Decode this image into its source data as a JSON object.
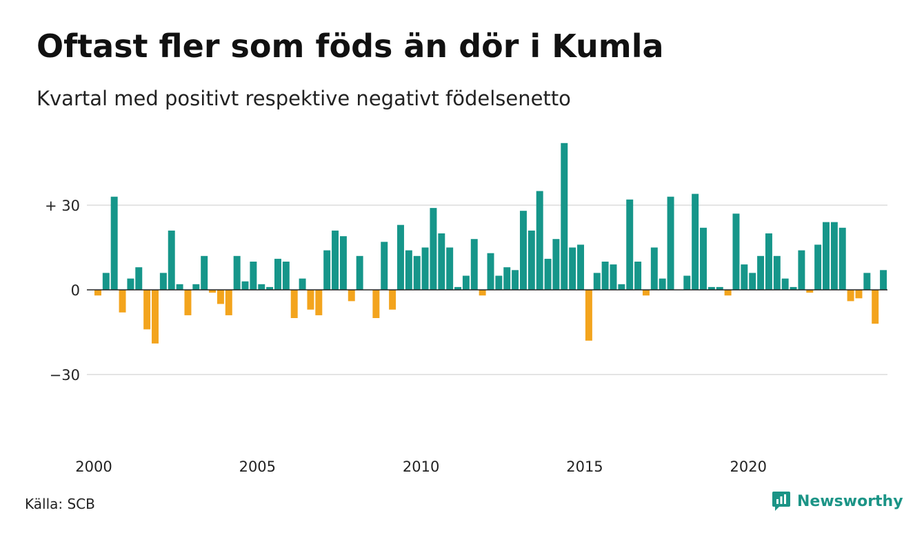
{
  "title": "Oftast fler som föds än dör i Kumla",
  "subtitle": "Kvartal med positivt respektive negativt födelsenetto",
  "source": "Källa: SCB",
  "brand": {
    "name": "Newsworthy",
    "icon": "newsworthy-logo-icon"
  },
  "colors": {
    "positive": "#16968a",
    "negative": "#f3a41d",
    "grid": "#e4e4e4",
    "zero": "#222222"
  },
  "chart_data": {
    "type": "bar",
    "ylim": [
      -45,
      55
    ],
    "yticks": [
      30,
      0,
      -30
    ],
    "ytick_labels": [
      "+ 30",
      "0",
      "−30"
    ],
    "x_start": 2000,
    "xticks": [
      2000,
      2005,
      2010,
      2015,
      2020
    ],
    "xtick_labels": [
      "2000",
      "2005",
      "2010",
      "2015",
      "2020"
    ],
    "grid": true,
    "series": [
      {
        "values": [
          -2,
          6,
          33,
          -8,
          4,
          8,
          -14,
          -19,
          6,
          21,
          2,
          -9,
          2,
          12,
          -1,
          -5,
          -9,
          12,
          3,
          10,
          2,
          1,
          11,
          10,
          -10,
          4,
          -7,
          -9,
          14,
          21,
          19,
          -4,
          12,
          0,
          -10,
          17,
          -7,
          23,
          14,
          12,
          15,
          29,
          20,
          15,
          1,
          5,
          18,
          -2,
          13,
          5,
          8,
          7,
          28,
          21,
          35,
          11,
          18,
          52,
          15,
          16,
          -18,
          6,
          10,
          9,
          2,
          32,
          10,
          -2,
          15,
          4,
          33,
          0,
          5,
          34,
          22,
          1,
          1,
          -2,
          27,
          9,
          6,
          12,
          20,
          12,
          4,
          1,
          14,
          -1,
          16,
          24,
          24,
          22,
          -4,
          -3,
          6,
          -12,
          7
        ]
      }
    ]
  }
}
